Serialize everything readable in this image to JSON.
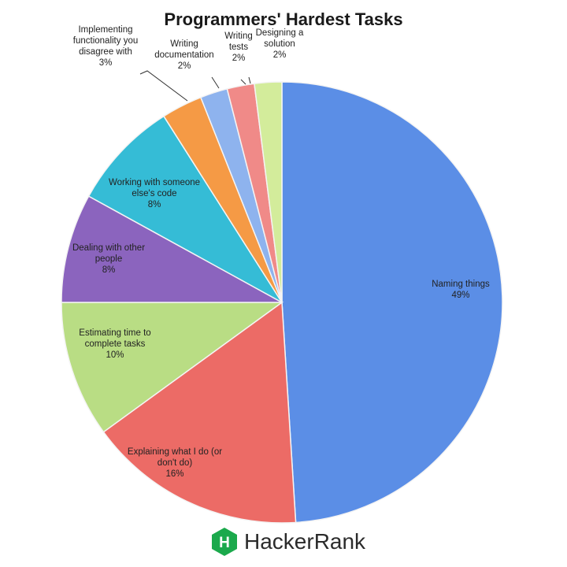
{
  "chart_data": {
    "type": "pie",
    "title": "Programmers' Hardest Tasks",
    "slices": [
      {
        "label": [
          "Naming things",
          "49%"
        ],
        "value": 49,
        "color": "#5b8ee6"
      },
      {
        "label": [
          "Explaining what I do (or",
          "don't do)",
          "16%"
        ],
        "value": 16,
        "color": "#ec6b66"
      },
      {
        "label": [
          "Estimating time to",
          "complete tasks",
          "10%"
        ],
        "value": 10,
        "color": "#b9dd84"
      },
      {
        "label": [
          "Dealing with other",
          "people",
          "8%"
        ],
        "value": 8,
        "color": "#8b64be"
      },
      {
        "label": [
          "Working with someone",
          "else's code",
          "8%"
        ],
        "value": 8,
        "color": "#35bcd6"
      },
      {
        "label": [
          "Implementing",
          "functionality you",
          "disagree with",
          "3%"
        ],
        "value": 3,
        "color": "#f59a45"
      },
      {
        "label": [
          "Writing",
          "documentation",
          "2%"
        ],
        "value": 2,
        "color": "#8eb3ee"
      },
      {
        "label": [
          "Writing",
          "tests",
          "2%"
        ],
        "value": 2,
        "color": "#f08a88"
      },
      {
        "label": [
          "Designing a",
          "solution",
          "2%"
        ],
        "value": 2,
        "color": "#d3ec9b"
      }
    ]
  },
  "brand": {
    "name": "HackerRank",
    "logo_letter": "H",
    "logo_color": "#1ba94c"
  }
}
